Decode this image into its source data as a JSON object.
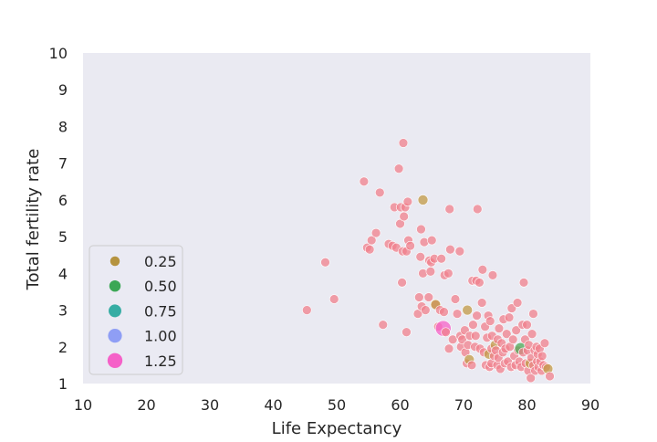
{
  "chart_data": {
    "type": "scatter",
    "title": "",
    "xlabel": "Life Expectancy",
    "ylabel": "Total fertility rate",
    "xlim": [
      10,
      90
    ],
    "ylim": [
      1,
      10
    ],
    "xticks": [
      10,
      20,
      30,
      40,
      50,
      60,
      70,
      80,
      90
    ],
    "yticks": [
      1,
      2,
      3,
      4,
      5,
      6,
      7,
      8,
      9,
      10
    ],
    "grid": false,
    "background_color": "#eaeaf2",
    "legend": {
      "placement": "lower-left",
      "entries": [
        {
          "label": "0.25",
          "color": "#b5933f",
          "size": 0.25
        },
        {
          "label": "0.50",
          "color": "#3ba755",
          "size": 0.5
        },
        {
          "label": "0.75",
          "color": "#36ada4",
          "size": 0.75
        },
        {
          "label": "1.00",
          "color": "#8f9ef5",
          "size": 1.0
        },
        {
          "label": "1.25",
          "color": "#f561c8",
          "size": 1.25
        }
      ]
    },
    "default_point": {
      "color": "#f0808c",
      "size": 0.15
    },
    "points": [
      {
        "x": 45.3,
        "y": 3.0
      },
      {
        "x": 48.2,
        "y": 4.3
      },
      {
        "x": 49.6,
        "y": 3.3
      },
      {
        "x": 54.3,
        "y": 6.5
      },
      {
        "x": 54.8,
        "y": 4.7
      },
      {
        "x": 55.2,
        "y": 4.65
      },
      {
        "x": 55.5,
        "y": 4.9
      },
      {
        "x": 56.2,
        "y": 5.1
      },
      {
        "x": 56.8,
        "y": 6.2
      },
      {
        "x": 57.3,
        "y": 2.6
      },
      {
        "x": 58.2,
        "y": 4.8
      },
      {
        "x": 58.8,
        "y": 4.75
      },
      {
        "x": 59.1,
        "y": 5.8
      },
      {
        "x": 59.4,
        "y": 4.7
      },
      {
        "x": 59.8,
        "y": 6.85
      },
      {
        "x": 60.0,
        "y": 5.35
      },
      {
        "x": 60.1,
        "y": 5.8
      },
      {
        "x": 60.3,
        "y": 3.75
      },
      {
        "x": 60.4,
        "y": 4.6
      },
      {
        "x": 60.5,
        "y": 7.55
      },
      {
        "x": 60.6,
        "y": 5.55
      },
      {
        "x": 60.8,
        "y": 5.8
      },
      {
        "x": 61.0,
        "y": 4.6
      },
      {
        "x": 61.0,
        "y": 2.4
      },
      {
        "x": 61.2,
        "y": 5.95
      },
      {
        "x": 61.3,
        "y": 4.9
      },
      {
        "x": 61.6,
        "y": 4.75
      },
      {
        "x": 62.8,
        "y": 2.9
      },
      {
        "x": 63.0,
        "y": 3.35
      },
      {
        "x": 63.2,
        "y": 4.45
      },
      {
        "x": 63.3,
        "y": 5.2
      },
      {
        "x": 63.4,
        "y": 3.1
      },
      {
        "x": 63.6,
        "y": 4.0
      },
      {
        "x": 63.6,
        "y": 6.0,
        "color": "#c29a45",
        "size": 0.25
      },
      {
        "x": 63.8,
        "y": 4.85
      },
      {
        "x": 64.0,
        "y": 3.0
      },
      {
        "x": 64.5,
        "y": 3.35
      },
      {
        "x": 64.6,
        "y": 4.35
      },
      {
        "x": 64.8,
        "y": 4.05
      },
      {
        "x": 64.9,
        "y": 4.3
      },
      {
        "x": 65.0,
        "y": 4.9
      },
      {
        "x": 65.4,
        "y": 4.4
      },
      {
        "x": 65.6,
        "y": 3.15
      },
      {
        "x": 65.6,
        "y": 3.15,
        "color": "#c29a45",
        "size": 0.25
      },
      {
        "x": 66.0,
        "y": 2.55
      },
      {
        "x": 66.3,
        "y": 3.0
      },
      {
        "x": 66.5,
        "y": 4.4
      },
      {
        "x": 66.8,
        "y": 2.5,
        "color": "#f561c8",
        "size": 1.25
      },
      {
        "x": 66.9,
        "y": 2.95
      },
      {
        "x": 67.0,
        "y": 3.95
      },
      {
        "x": 67.2,
        "y": 2.4
      },
      {
        "x": 67.6,
        "y": 4.0
      },
      {
        "x": 67.7,
        "y": 1.95
      },
      {
        "x": 67.8,
        "y": 5.75
      },
      {
        "x": 67.9,
        "y": 4.65
      },
      {
        "x": 68.3,
        "y": 2.2
      },
      {
        "x": 68.7,
        "y": 3.3
      },
      {
        "x": 69.0,
        "y": 2.9
      },
      {
        "x": 69.4,
        "y": 4.6
      },
      {
        "x": 69.5,
        "y": 2.3
      },
      {
        "x": 69.6,
        "y": 2.0
      },
      {
        "x": 69.8,
        "y": 2.2
      },
      {
        "x": 70.2,
        "y": 2.45
      },
      {
        "x": 70.3,
        "y": 1.85
      },
      {
        "x": 70.5,
        "y": 1.55
      },
      {
        "x": 70.6,
        "y": 3.0,
        "color": "#c29a45",
        "size": 0.25
      },
      {
        "x": 70.7,
        "y": 2.05
      },
      {
        "x": 70.9,
        "y": 1.65,
        "color": "#c29a45",
        "size": 0.25
      },
      {
        "x": 71.0,
        "y": 2.3
      },
      {
        "x": 71.3,
        "y": 1.5
      },
      {
        "x": 71.4,
        "y": 3.8
      },
      {
        "x": 71.5,
        "y": 2.6
      },
      {
        "x": 71.8,
        "y": 2.0
      },
      {
        "x": 71.9,
        "y": 2.3
      },
      {
        "x": 72.0,
        "y": 3.8
      },
      {
        "x": 72.1,
        "y": 2.85
      },
      {
        "x": 72.2,
        "y": 5.75
      },
      {
        "x": 72.5,
        "y": 3.75
      },
      {
        "x": 72.6,
        "y": 1.95
      },
      {
        "x": 72.9,
        "y": 3.2
      },
      {
        "x": 73.0,
        "y": 4.1
      },
      {
        "x": 73.2,
        "y": 1.85
      },
      {
        "x": 73.4,
        "y": 2.55
      },
      {
        "x": 73.5,
        "y": 1.5
      },
      {
        "x": 73.7,
        "y": 2.25
      },
      {
        "x": 73.9,
        "y": 2.85
      },
      {
        "x": 74.0,
        "y": 1.8,
        "color": "#c29a45",
        "size": 0.25
      },
      {
        "x": 74.1,
        "y": 1.45
      },
      {
        "x": 74.2,
        "y": 2.7
      },
      {
        "x": 74.4,
        "y": 1.95
      },
      {
        "x": 74.4,
        "y": 1.55
      },
      {
        "x": 74.5,
        "y": 2.3
      },
      {
        "x": 74.6,
        "y": 3.95
      },
      {
        "x": 74.8,
        "y": 1.75
      },
      {
        "x": 75.0,
        "y": 2.05,
        "color": "#c29a45",
        "size": 0.25
      },
      {
        "x": 75.1,
        "y": 1.9
      },
      {
        "x": 75.3,
        "y": 1.5
      },
      {
        "x": 75.4,
        "y": 2.2
      },
      {
        "x": 75.5,
        "y": 1.7
      },
      {
        "x": 75.6,
        "y": 2.5
      },
      {
        "x": 75.8,
        "y": 1.4
      },
      {
        "x": 76.0,
        "y": 2.1
      },
      {
        "x": 76.2,
        "y": 1.85
      },
      {
        "x": 76.3,
        "y": 2.75
      },
      {
        "x": 76.5,
        "y": 1.55
      },
      {
        "x": 76.6,
        "y": 1.95
      },
      {
        "x": 76.8,
        "y": 2.35
      },
      {
        "x": 77.0,
        "y": 1.6
      },
      {
        "x": 77.2,
        "y": 2.8
      },
      {
        "x": 77.3,
        "y": 2.0
      },
      {
        "x": 77.5,
        "y": 1.45
      },
      {
        "x": 77.6,
        "y": 3.05
      },
      {
        "x": 77.8,
        "y": 2.2
      },
      {
        "x": 78.0,
        "y": 1.75
      },
      {
        "x": 78.2,
        "y": 1.5
      },
      {
        "x": 78.3,
        "y": 2.45
      },
      {
        "x": 78.5,
        "y": 3.2
      },
      {
        "x": 78.6,
        "y": 1.9
      },
      {
        "x": 78.8,
        "y": 1.6
      },
      {
        "x": 79.0,
        "y": 1.95,
        "color": "#4caa55",
        "size": 0.5
      },
      {
        "x": 79.1,
        "y": 1.45
      },
      {
        "x": 79.3,
        "y": 2.6
      },
      {
        "x": 79.4,
        "y": 1.85
      },
      {
        "x": 79.5,
        "y": 3.75
      },
      {
        "x": 79.7,
        "y": 2.2
      },
      {
        "x": 79.8,
        "y": 1.55
      },
      {
        "x": 80.0,
        "y": 2.6
      },
      {
        "x": 80.1,
        "y": 1.9
      },
      {
        "x": 80.2,
        "y": 1.35
      },
      {
        "x": 80.3,
        "y": 2.05
      },
      {
        "x": 80.5,
        "y": 1.55,
        "color": "#c29a45",
        "size": 0.25
      },
      {
        "x": 80.6,
        "y": 1.15
      },
      {
        "x": 80.7,
        "y": 1.7
      },
      {
        "x": 80.8,
        "y": 2.35
      },
      {
        "x": 81.0,
        "y": 2.9
      },
      {
        "x": 81.0,
        "y": 1.5
      },
      {
        "x": 81.2,
        "y": 1.9
      },
      {
        "x": 81.3,
        "y": 1.35
      },
      {
        "x": 81.5,
        "y": 2.0
      },
      {
        "x": 81.6,
        "y": 1.6
      },
      {
        "x": 81.7,
        "y": 1.8
      },
      {
        "x": 81.8,
        "y": 1.45
      },
      {
        "x": 82.0,
        "y": 1.95
      },
      {
        "x": 82.1,
        "y": 1.6
      },
      {
        "x": 82.3,
        "y": 1.35
      },
      {
        "x": 82.4,
        "y": 1.75
      },
      {
        "x": 82.6,
        "y": 1.5
      },
      {
        "x": 82.8,
        "y": 2.1
      },
      {
        "x": 83.0,
        "y": 1.45
      },
      {
        "x": 83.3,
        "y": 1.4,
        "color": "#c29a45",
        "size": 0.25
      },
      {
        "x": 83.6,
        "y": 1.2
      }
    ]
  }
}
